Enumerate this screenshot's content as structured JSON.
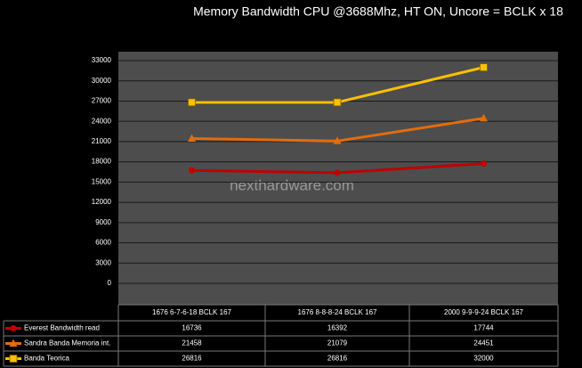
{
  "chart_data": {
    "type": "line",
    "title": "Memory Bandwidth CPU @3688Mhz, HT ON, Uncore = BCLK x 18",
    "watermark": "nexthardware.com",
    "categories": [
      "1676 6-7-6-18 BCLK 167",
      "1676 8-8-8-24 BCLK 167",
      "2000 9-9-9-24 BCLK 167"
    ],
    "series": [
      {
        "name": "Everest Bandwidth  read",
        "color": "#c00000",
        "marker": "circle",
        "values": [
          16736,
          16392,
          17744
        ]
      },
      {
        "name": "Sandra Banda Memoria int.",
        "color": "#e46c0a",
        "marker": "triangle",
        "values": [
          21458,
          21079,
          24451
        ]
      },
      {
        "name": "Banda Teorica",
        "color": "#ffc000",
        "marker": "square",
        "values": [
          26816,
          26816,
          32000
        ]
      }
    ],
    "ylim": [
      0,
      33000
    ],
    "yticks": [
      0,
      3000,
      6000,
      9000,
      12000,
      15000,
      18000,
      21000,
      24000,
      27000,
      30000,
      33000
    ],
    "grid": true
  }
}
